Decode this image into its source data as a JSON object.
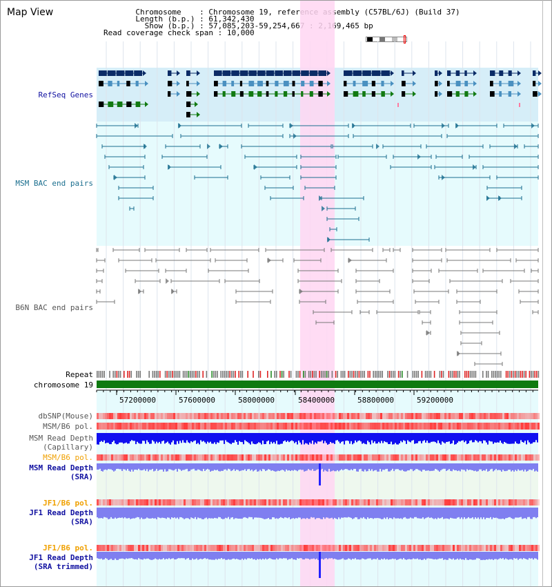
{
  "page_title": "Map View",
  "info": {
    "chromosome": {
      "label": "Chromosome",
      "value": "Chromosome 19, reference assembly (C57BL/6J) (Build 37)"
    },
    "length": {
      "label": "Length (b.p.)",
      "value": "61,342,430"
    },
    "show": {
      "label": "Show (b.p.)",
      "value": "57,085,203-59,254,667 : 2,169,465 bp"
    },
    "coverage": {
      "label": "Read coverage check span",
      "value": "10,000"
    }
  },
  "tracks": {
    "refseq": "RefSeq Genes",
    "msm_bac": "MSM BAC end pairs",
    "b6n_bac": "B6N BAC end pairs",
    "repeat": "Repeat",
    "chromosome": "chromosome 19",
    "dbsnp": "dbSNP(Mouse)",
    "msm_b6_pol": "MSM/B6 pol.",
    "msm_depth_cap_1": "MSM Read Depth",
    "msm_depth_cap_2": "(Capillary)",
    "msm_b6_pol_sra": "MSM/B6 pol.",
    "msm_depth_sra_1": "MSM Read Depth",
    "msm_depth_sra_2": "(SRA)",
    "jf1_b6_pol": "JF1/B6 pol.",
    "jf1_depth_1": "JF1 Read Depth",
    "jf1_depth_2": "(SRA)",
    "jf1_b6_pol_trim": "JF1/B6 pol.",
    "jf1_depth_trim_1": "JF1 Read Depth",
    "jf1_depth_trim_2": "(SRA trimmed)"
  },
  "axis_ticks": [
    "57200000",
    "57600000",
    "58000000",
    "58400000",
    "58800000",
    "59200000"
  ],
  "colors": {
    "highlight": "#ffd6f2",
    "refseq_bg": "#d6eef8",
    "track_bg": "#e6fbfd",
    "gene_dark": "#0b2b66",
    "gene_light": "#4a90c0",
    "gene_green": "#127a12",
    "msm_pair": "#1a6e8e",
    "b6n_pair": "#777777",
    "chrom": "#0f7a10",
    "pol_red": "#ff3b3b",
    "depth_blue": "#1010f0",
    "depth_light": "#7f7ff0",
    "label_blue": "#1010a0",
    "label_teal": "#1a6e8e",
    "label_gray": "#555555",
    "label_orange": "#f0a000"
  }
}
